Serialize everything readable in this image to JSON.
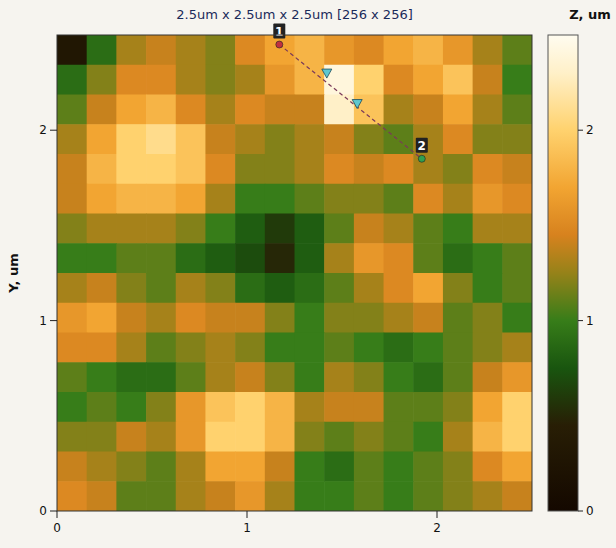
{
  "chart_data": {
    "type": "heatmap",
    "title": "2.5um x 2.5um x 2.5um [256 x 256]",
    "y_label": "Y, um",
    "colorbar_label": "Z, um",
    "xlim": [
      0,
      2.5
    ],
    "ylim": [
      0,
      2.5
    ],
    "xticks": [
      0,
      1,
      2
    ],
    "yticks": [
      0,
      1,
      2
    ],
    "colorbar_range": [
      0,
      2.5
    ],
    "colorbar_ticks": [
      0,
      1,
      2
    ],
    "cells": [
      [
        0.3,
        0.9,
        1.3,
        1.4,
        1.3,
        1.2,
        1.5,
        1.7,
        1.8,
        1.6,
        1.5,
        1.7,
        1.8,
        1.6,
        1.3,
        1.1
      ],
      [
        0.9,
        1.2,
        1.5,
        1.5,
        1.3,
        1.2,
        1.3,
        1.6,
        1.8,
        2.4,
        2.0,
        1.5,
        1.7,
        1.9,
        1.4,
        1.0
      ],
      [
        1.1,
        1.4,
        1.7,
        1.8,
        1.5,
        1.3,
        1.5,
        1.4,
        1.4,
        2.3,
        1.9,
        1.3,
        1.4,
        1.7,
        1.3,
        1.1
      ],
      [
        1.3,
        1.7,
        2.0,
        2.1,
        1.9,
        1.4,
        1.3,
        1.2,
        1.3,
        1.4,
        1.2,
        1.1,
        1.3,
        1.5,
        1.2,
        1.2
      ],
      [
        1.4,
        1.8,
        2.0,
        2.0,
        1.9,
        1.5,
        1.2,
        1.2,
        1.3,
        1.5,
        1.4,
        1.5,
        1.3,
        1.2,
        1.5,
        1.4
      ],
      [
        1.4,
        1.7,
        1.8,
        1.8,
        1.7,
        1.3,
        1.0,
        1.0,
        1.1,
        1.2,
        1.2,
        1.1,
        1.5,
        1.3,
        1.6,
        1.5
      ],
      [
        1.2,
        1.3,
        1.3,
        1.3,
        1.2,
        1.0,
        0.8,
        0.6,
        0.8,
        1.1,
        1.4,
        1.3,
        1.1,
        1.0,
        1.3,
        1.3
      ],
      [
        1.0,
        1.0,
        1.1,
        1.1,
        0.9,
        0.8,
        0.7,
        0.5,
        0.8,
        1.3,
        1.6,
        1.5,
        1.1,
        0.9,
        1.0,
        1.1
      ],
      [
        1.3,
        1.4,
        1.2,
        1.1,
        1.3,
        1.2,
        0.9,
        0.8,
        0.9,
        1.1,
        1.3,
        1.5,
        1.7,
        1.2,
        1.0,
        1.1
      ],
      [
        1.6,
        1.7,
        1.4,
        1.3,
        1.5,
        1.4,
        1.4,
        1.2,
        1.0,
        1.2,
        1.2,
        1.3,
        1.4,
        1.1,
        1.2,
        1.0
      ],
      [
        1.5,
        1.5,
        1.3,
        1.1,
        1.2,
        1.3,
        1.2,
        1.0,
        1.0,
        1.1,
        1.0,
        0.9,
        1.0,
        1.1,
        1.2,
        1.3
      ],
      [
        1.1,
        1.0,
        0.9,
        0.9,
        1.1,
        1.3,
        1.4,
        1.2,
        1.0,
        1.3,
        1.2,
        1.0,
        0.9,
        1.1,
        1.4,
        1.6
      ],
      [
        1.0,
        1.1,
        1.0,
        1.2,
        1.6,
        1.9,
        2.0,
        1.8,
        1.3,
        1.4,
        1.4,
        1.1,
        1.1,
        1.2,
        1.7,
        2.0
      ],
      [
        1.2,
        1.2,
        1.4,
        1.3,
        1.6,
        2.0,
        2.0,
        1.8,
        1.2,
        1.1,
        1.2,
        1.1,
        1.0,
        1.3,
        1.8,
        2.0
      ],
      [
        1.4,
        1.3,
        1.2,
        1.1,
        1.3,
        1.7,
        1.7,
        1.4,
        1.0,
        0.9,
        1.1,
        1.0,
        1.1,
        1.2,
        1.5,
        1.7
      ],
      [
        1.5,
        1.4,
        1.1,
        1.1,
        1.3,
        1.4,
        1.6,
        1.3,
        1.0,
        1.0,
        1.1,
        1.0,
        1.1,
        1.2,
        1.3,
        1.4
      ]
    ],
    "annotations": [
      {
        "label": "1",
        "x": 1.17,
        "y": 2.45
      },
      {
        "label": "2",
        "x": 1.92,
        "y": 1.85
      }
    ],
    "markers": [
      {
        "x": 1.42,
        "y": 2.3
      },
      {
        "x": 1.58,
        "y": 2.14
      }
    ]
  }
}
